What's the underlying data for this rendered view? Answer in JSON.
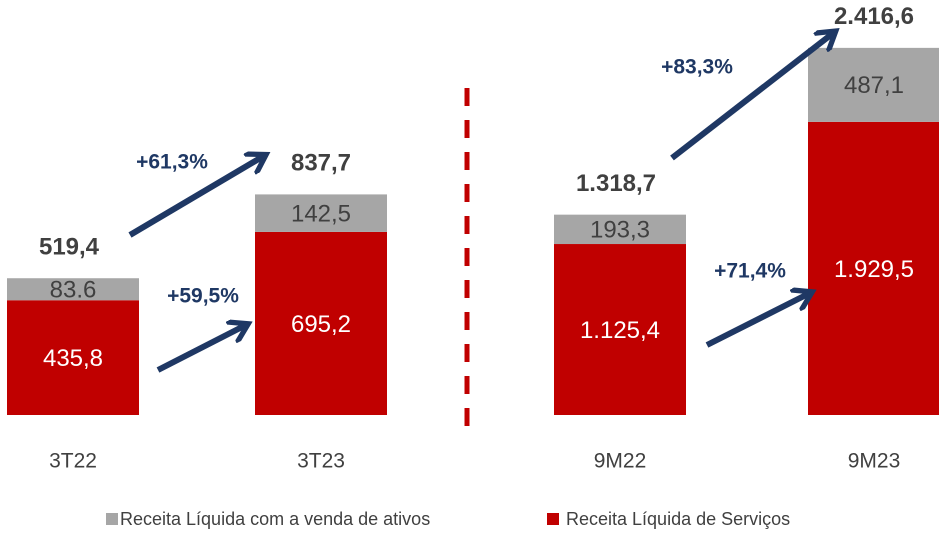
{
  "chart_data": [
    {
      "type": "bar",
      "stacked": true,
      "categories": [
        "3T22",
        "3T23"
      ],
      "ylim": [
        0,
        1500
      ],
      "series": [
        {
          "name": "Receita Líquida de Serviços",
          "color": "#c00000",
          "values": [
            435.8,
            695.2
          ],
          "value_labels": [
            "435,8",
            "695,2"
          ]
        },
        {
          "name": "Receita Líquida com a venda de ativos",
          "color": "#a6a6a6",
          "values": [
            83.6,
            142.5
          ],
          "value_labels": [
            "83.6",
            "142,5"
          ]
        }
      ],
      "totals": {
        "values": [
          519.4,
          837.7
        ],
        "value_labels": [
          "519,4",
          "837,7"
        ]
      },
      "annotations": [
        "+61,3%",
        "+59,5%"
      ]
    },
    {
      "type": "bar",
      "stacked": true,
      "categories": [
        "9M22",
        "9M23"
      ],
      "ylim": [
        0,
        2600
      ],
      "series": [
        {
          "color": "#c00000",
          "values": [
            1125.4,
            1929.5
          ],
          "value_labels": [
            "1.125,4",
            "1.929,5"
          ]
        },
        {
          "color": "#a6a6a6",
          "values": [
            193.3,
            487.1
          ],
          "value_labels": [
            "193,3",
            "487,1"
          ]
        }
      ],
      "totals": {
        "values": [
          1318.7,
          2416.6
        ],
        "value_labels": [
          "1.318,7",
          "2.416,6"
        ]
      },
      "annotations": [
        "+83,3%",
        "+71,4%"
      ]
    }
  ]
}
